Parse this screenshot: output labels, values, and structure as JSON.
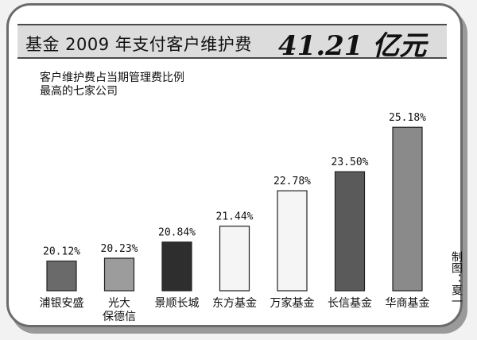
{
  "header": {
    "title": "基金 2009 年支付客户维护费",
    "amount": "41.21 亿元"
  },
  "subtitle_lines": [
    "客户维护费占当期管理费比例",
    "最高的七家公司"
  ],
  "credit": "制图：夏一",
  "chart_data": {
    "type": "bar",
    "categories": [
      "浦银安盛",
      "光大\n保德信",
      "景顺长城",
      "东方基金",
      "万家基金",
      "长信基金",
      "华商基金"
    ],
    "values": [
      20.12,
      20.23,
      20.84,
      21.44,
      22.78,
      23.5,
      25.18
    ],
    "value_labels": [
      "20.12%",
      "20.23%",
      "20.84%",
      "21.44%",
      "22.78%",
      "23.50%",
      "25.18%"
    ],
    "unit": "%",
    "bar_colors": [
      "#6a6a6a",
      "#9c9c9c",
      "#2e2e2e",
      "#f5f5f5",
      "#f5f5f5",
      "#5a5a5a",
      "#8a8a8a"
    ],
    "xlabel": "",
    "ylabel": "",
    "grid": false
  }
}
